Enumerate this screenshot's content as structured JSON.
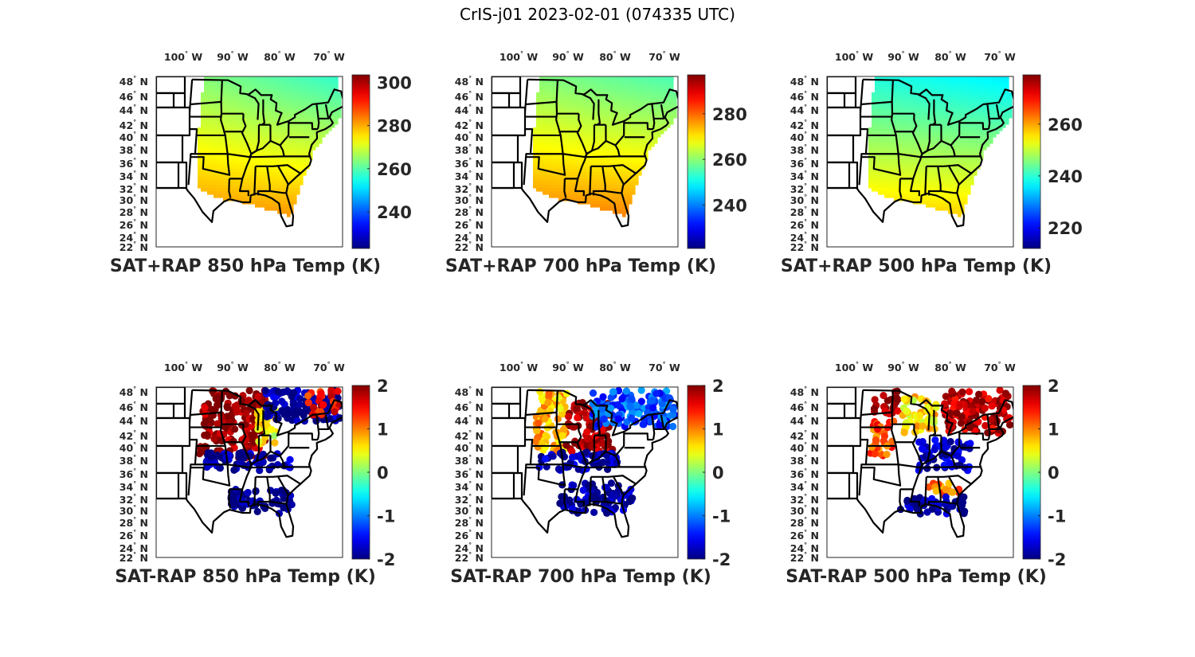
{
  "figure": {
    "title": "CrIS-j01 2023-02-01 (074335 UTC)"
  },
  "colormap": "jet",
  "colormap_stops": [
    "#00008f",
    "#0000ff",
    "#00ffff",
    "#ffff00",
    "#ff0000",
    "#800000"
  ],
  "map_ticks": {
    "lon": [
      "100° W",
      "90° W",
      "80° W",
      "70° W"
    ],
    "lon_values": [
      -100,
      -90,
      -80,
      -70
    ],
    "lat": [
      "48° N",
      "46° N",
      "44° N",
      "42° N",
      "40° N",
      "38° N",
      "36° N",
      "34° N",
      "32° N",
      "30° N",
      "28° N",
      "26° N",
      "24° N",
      "22° N"
    ],
    "lat_values": [
      48,
      46,
      44,
      42,
      40,
      38,
      36,
      34,
      32,
      30,
      28,
      26,
      24,
      22
    ]
  },
  "chart_data": [
    {
      "type": "heatmap",
      "title": "SAT+RAP 850 hPa Temp (K)",
      "row": 0,
      "col": 0,
      "field": "combined",
      "colorbar": {
        "ticks": [
          240,
          260,
          280,
          300
        ],
        "tick_labels": [
          "240",
          "260",
          "280",
          "300"
        ],
        "range": [
          223,
          303.5
        ]
      },
      "pattern": {
        "north": 257,
        "south": 287,
        "west_boost": 6
      },
      "xlim": [
        -105,
        -66
      ],
      "ylim": [
        22,
        49
      ],
      "xlabel": "",
      "ylabel": ""
    },
    {
      "type": "heatmap",
      "title": "SAT+RAP 700 hPa Temp (K)",
      "row": 0,
      "col": 1,
      "field": "combined",
      "colorbar": {
        "ticks": [
          240,
          260,
          280
        ],
        "tick_labels": [
          "240",
          "260",
          "280"
        ],
        "range": [
          221,
          297
        ]
      },
      "pattern": {
        "north": 255,
        "south": 283,
        "west_boost": 4
      },
      "xlim": [
        -105,
        -66
      ],
      "ylim": [
        22,
        49
      ]
    },
    {
      "type": "heatmap",
      "title": "SAT+RAP 500 hPa Temp (K)",
      "row": 0,
      "col": 2,
      "field": "combined",
      "colorbar": {
        "ticks": [
          220,
          240,
          260
        ],
        "tick_labels": [
          "220",
          "240",
          "260"
        ],
        "range": [
          212,
          279
        ]
      },
      "pattern": {
        "north": 236,
        "south": 262,
        "west_boost": 3
      },
      "xlim": [
        -105,
        -66
      ],
      "ylim": [
        22,
        49
      ]
    },
    {
      "type": "scatter",
      "title": "SAT-RAP 850 hPa Temp (K)",
      "row": 1,
      "col": 0,
      "field": "difference",
      "colorbar": {
        "ticks": [
          -2,
          -1,
          0,
          1,
          2
        ],
        "tick_labels": [
          "-2",
          "-1",
          "0",
          "1",
          "2"
        ],
        "range": [
          -2,
          2
        ]
      },
      "regions": [
        {
          "lon": [
            -102,
            -86
          ],
          "lat": [
            38,
            49
          ],
          "value": 2
        },
        {
          "lon": [
            -88,
            -83
          ],
          "lat": [
            40,
            46
          ],
          "value": 0.5
        },
        {
          "lon": [
            -86,
            -67
          ],
          "lat": [
            44,
            49
          ],
          "value": -1.9
        },
        {
          "lon": [
            -76,
            -67
          ],
          "lat": [
            45,
            49
          ],
          "value": 1.5
        },
        {
          "lon": [
            -100,
            -80
          ],
          "lat": [
            36,
            39
          ],
          "value": -1.9
        },
        {
          "lon": [
            -94,
            -80
          ],
          "lat": [
            29,
            33
          ],
          "value": -2
        }
      ],
      "xlim": [
        -105,
        -66
      ],
      "ylim": [
        22,
        49
      ]
    },
    {
      "type": "scatter",
      "title": "SAT-RAP 700 hPa Temp (K)",
      "row": 1,
      "col": 1,
      "field": "difference",
      "colorbar": {
        "ticks": [
          -2,
          -1,
          0,
          1,
          2
        ],
        "tick_labels": [
          "-2",
          "-1",
          "0",
          "1",
          "2"
        ],
        "range": [
          -2,
          2
        ]
      },
      "regions": [
        {
          "lon": [
            -102,
            -94
          ],
          "lat": [
            39,
            49
          ],
          "value": 0.8
        },
        {
          "lon": [
            -94,
            -83
          ],
          "lat": [
            39,
            47
          ],
          "value": 1.9
        },
        {
          "lon": [
            -88,
            -67
          ],
          "lat": [
            43,
            49
          ],
          "value": -1.2
        },
        {
          "lon": [
            -100,
            -82
          ],
          "lat": [
            36,
            39
          ],
          "value": -1.8
        },
        {
          "lon": [
            -95,
            -79
          ],
          "lat": [
            29,
            34
          ],
          "value": -1.9
        }
      ],
      "xlim": [
        -105,
        -66
      ],
      "ylim": [
        22,
        49
      ]
    },
    {
      "type": "scatter",
      "title": "SAT-RAP 500 hPa Temp (K)",
      "row": 1,
      "col": 2,
      "field": "difference",
      "colorbar": {
        "ticks": [
          -2,
          -1,
          0,
          1,
          2
        ],
        "tick_labels": [
          "-2",
          "-1",
          "0",
          "1",
          "2"
        ],
        "range": [
          -2,
          2
        ]
      },
      "regions": [
        {
          "lon": [
            -102,
            -95
          ],
          "lat": [
            45,
            49
          ],
          "value": 2
        },
        {
          "lon": [
            -102,
            -96
          ],
          "lat": [
            38,
            44
          ],
          "value": 1.2
        },
        {
          "lon": [
            -94,
            -86
          ],
          "lat": [
            42,
            48
          ],
          "value": 0.6
        },
        {
          "lon": [
            -84,
            -67
          ],
          "lat": [
            42,
            49
          ],
          "value": 1.8
        },
        {
          "lon": [
            -90,
            -78
          ],
          "lat": [
            36,
            41
          ],
          "value": -1.8
        },
        {
          "lon": [
            -88,
            -80
          ],
          "lat": [
            32,
            34
          ],
          "value": 1.0
        },
        {
          "lon": [
            -94,
            -79
          ],
          "lat": [
            29,
            32
          ],
          "value": -1.9
        }
      ],
      "xlim": [
        -105,
        -66
      ],
      "ylim": [
        22,
        49
      ]
    }
  ]
}
